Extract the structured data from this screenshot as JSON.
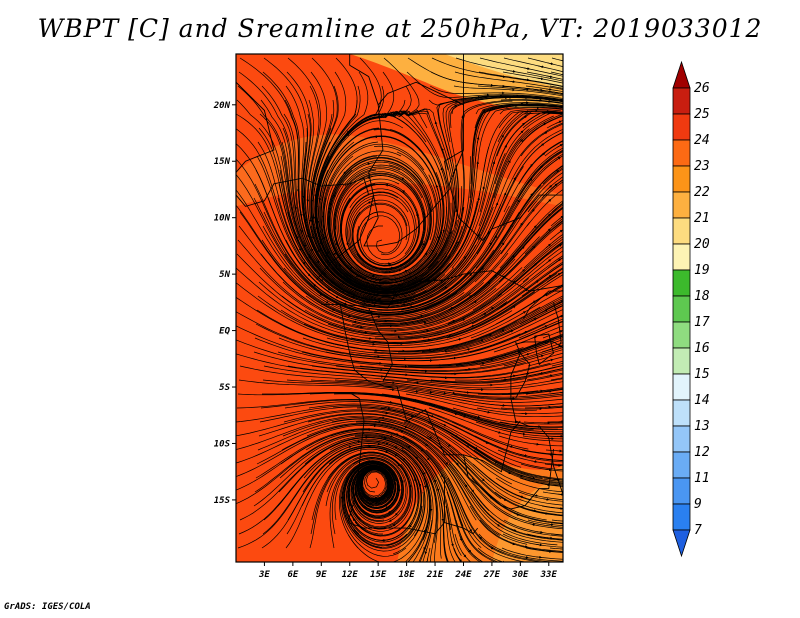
{
  "title": "WBPT [C] and Sreamline at 250hPa, VT: 2019033012",
  "credit": "GrADS: IGES/COLA",
  "map": {
    "lon_range": [
      0,
      34.5
    ],
    "lat_range": [
      -20.5,
      24.5
    ],
    "x_ticks": [
      "3E",
      "6E",
      "9E",
      "12E",
      "15E",
      "18E",
      "21E",
      "24E",
      "27E",
      "30E",
      "33E"
    ],
    "y_ticks": [
      "20N",
      "15N",
      "10N",
      "5N",
      "EQ",
      "5S",
      "10S",
      "15S"
    ],
    "background_color": "#fc4a10",
    "field_regions": [
      {
        "name": "northeast warm band",
        "color": "#fdb040"
      },
      {
        "name": "northeast peak",
        "color": "#fddc80"
      },
      {
        "name": "sahel band",
        "color": "#fc7020"
      },
      {
        "name": "southeast band",
        "color": "#fc7a1c"
      }
    ],
    "vortices": [
      {
        "name": "northern anticyclone",
        "center_lon": 15.5,
        "center_lat": 7.5
      },
      {
        "name": "southern cyclone",
        "center_lon": 14.5,
        "center_lat": -13.0
      }
    ]
  },
  "colorbar": {
    "labels": [
      "7",
      "9",
      "11",
      "12",
      "13",
      "14",
      "15",
      "16",
      "17",
      "18",
      "19",
      "20",
      "21",
      "22",
      "23",
      "24",
      "25",
      "26"
    ],
    "colors": [
      "#1e6ee6",
      "#2a80f0",
      "#4a96f2",
      "#6aacf5",
      "#94c6f8",
      "#bee0fa",
      "#e2f4fc",
      "#c2ecb4",
      "#8fdc80",
      "#5ec850",
      "#3cba2c",
      "#fdf3b4",
      "#fddc80",
      "#fdb040",
      "#fc9418",
      "#fc6a14",
      "#f03a10",
      "#c81e10",
      "#9e1010"
    ],
    "arrow_top_color": "#a00000",
    "arrow_bottom_color": "#1e5fe0"
  }
}
